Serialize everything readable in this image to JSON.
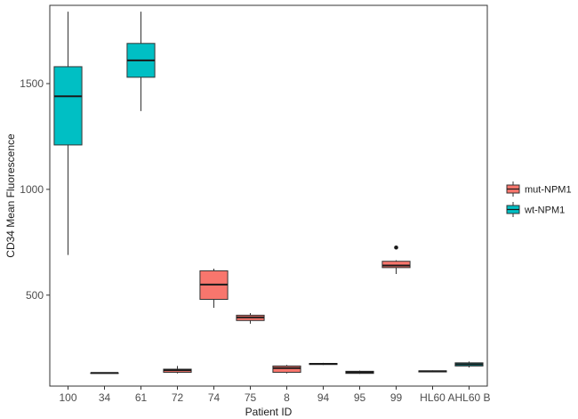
{
  "chart_data": {
    "type": "boxplot",
    "xlabel": "Patient ID",
    "ylabel": "CD34 Mean Fluorescence",
    "ylim": [
      70,
      1870
    ],
    "yticks": [
      500,
      1000,
      1500
    ],
    "categories": [
      "100",
      "34",
      "61",
      "72",
      "74",
      "75",
      "8",
      "94",
      "95",
      "99",
      "HL60",
      "AHL60 B"
    ],
    "legend": {
      "position": "right",
      "entries": [
        {
          "label": "mut-NPM1",
          "color": "#F8766D"
        },
        {
          "label": "wt-NPM1",
          "color": "#00BFC4"
        }
      ]
    },
    "boxes": [
      {
        "category": "100",
        "group": "wt-NPM1",
        "min": 690,
        "q1": 1210,
        "median": 1440,
        "q3": 1580,
        "max": 1840,
        "outliers": []
      },
      {
        "category": "34",
        "group": "wt-NPM1",
        "min": 132,
        "q1": 132,
        "median": 132,
        "q3": 132,
        "max": 132,
        "outliers": []
      },
      {
        "category": "61",
        "group": "wt-NPM1",
        "min": 1370,
        "q1": 1530,
        "median": 1610,
        "q3": 1690,
        "max": 1840,
        "outliers": []
      },
      {
        "category": "72",
        "group": "mut-NPM1",
        "min": 130,
        "q1": 135,
        "median": 145,
        "q3": 150,
        "max": 165,
        "outliers": []
      },
      {
        "category": "74",
        "group": "mut-NPM1",
        "min": 440,
        "q1": 480,
        "median": 550,
        "q3": 615,
        "max": 625,
        "outliers": []
      },
      {
        "category": "75",
        "group": "mut-NPM1",
        "min": 365,
        "q1": 380,
        "median": 395,
        "q3": 405,
        "max": 415,
        "outliers": []
      },
      {
        "category": "8",
        "group": "mut-NPM1",
        "min": 130,
        "q1": 135,
        "median": 155,
        "q3": 165,
        "max": 170,
        "outliers": []
      },
      {
        "category": "94",
        "group": "mut-NPM1",
        "min": 170,
        "q1": 172,
        "median": 175,
        "q3": 177,
        "max": 180,
        "outliers": []
      },
      {
        "category": "95",
        "group": "mut-NPM1",
        "min": 128,
        "q1": 130,
        "median": 135,
        "q3": 140,
        "max": 143,
        "outliers": []
      },
      {
        "category": "99",
        "group": "mut-NPM1",
        "min": 600,
        "q1": 630,
        "median": 640,
        "q3": 660,
        "max": 665,
        "outliers": [
          725
        ]
      },
      {
        "category": "HL60",
        "group": "wt-NPM1",
        "min": 135,
        "q1": 137,
        "median": 140,
        "q3": 142,
        "max": 144,
        "outliers": []
      },
      {
        "category": "AHL60 B",
        "group": "wt-NPM1",
        "min": 158,
        "q1": 165,
        "median": 173,
        "q3": 180,
        "max": 186,
        "outliers": []
      }
    ]
  }
}
